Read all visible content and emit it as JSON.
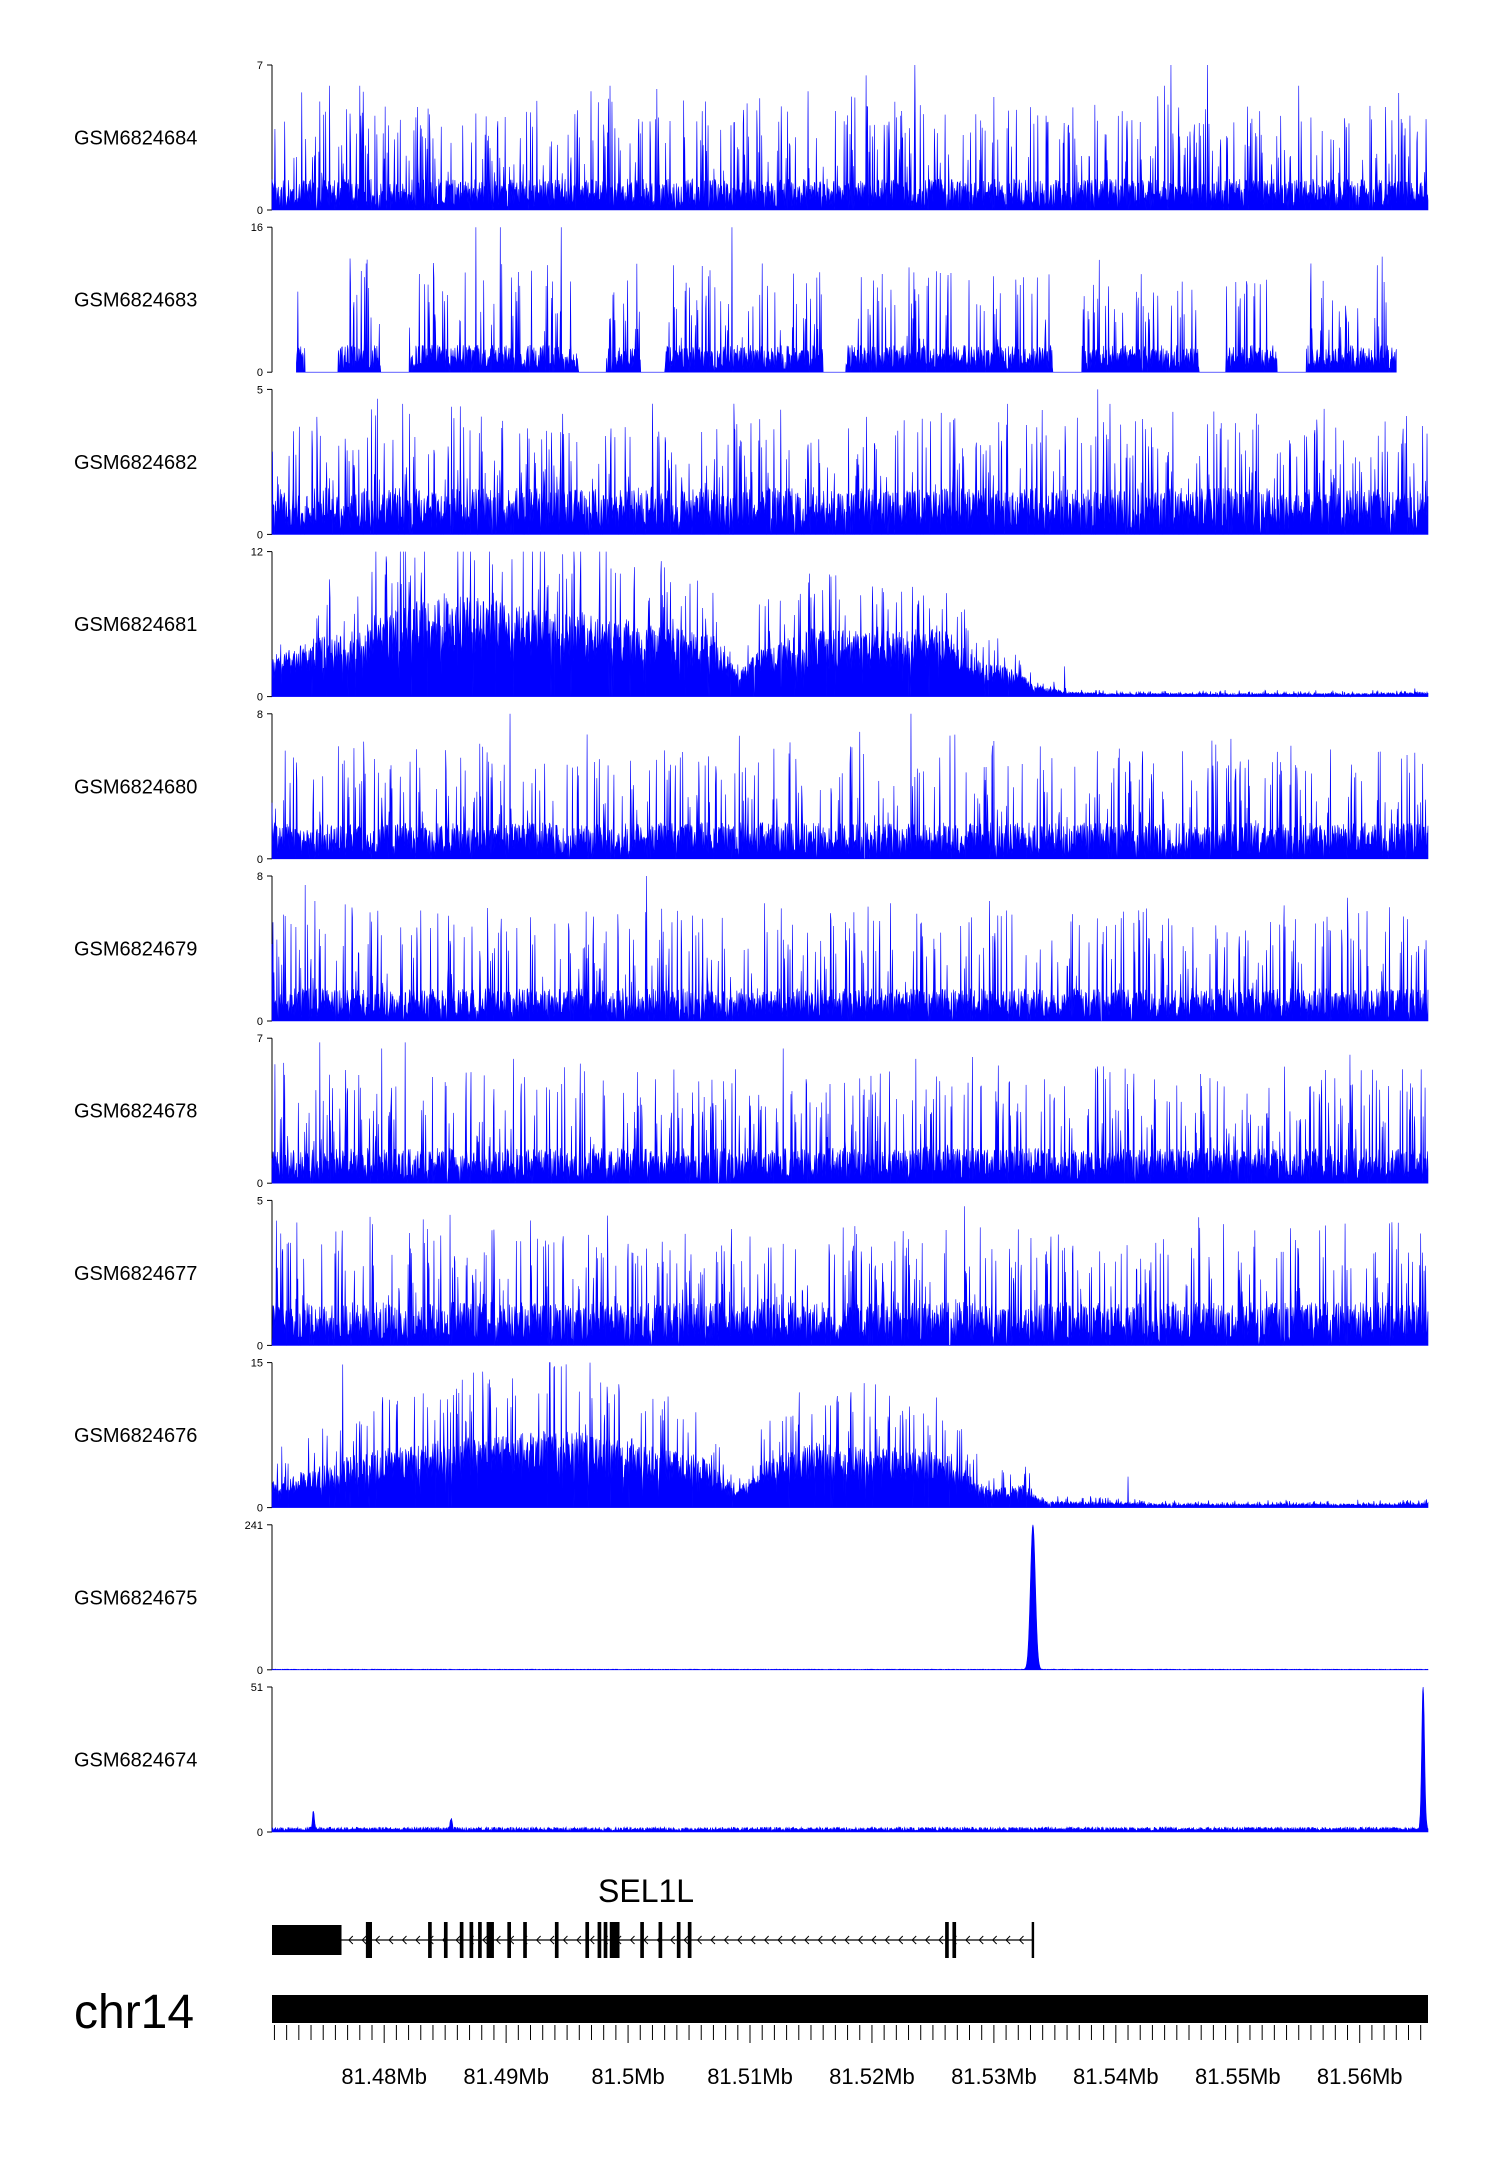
{
  "chart_data": {
    "type": "area",
    "chromosome": "chr14",
    "xlim": [
      81.4708,
      81.5656
    ],
    "x_ticks": [
      81.471,
      81.472,
      81.473,
      81.474,
      81.475,
      81.476,
      81.477,
      81.478,
      81.479,
      81.48,
      81.481,
      81.482,
      81.483,
      81.484,
      81.485,
      81.486,
      81.487,
      81.488,
      81.489,
      81.49,
      81.491,
      81.492,
      81.493,
      81.494,
      81.495,
      81.496,
      81.497,
      81.498,
      81.499,
      81.5,
      81.501,
      81.502,
      81.503,
      81.504,
      81.505,
      81.506,
      81.507,
      81.508,
      81.509,
      81.51,
      81.511,
      81.512,
      81.513,
      81.514,
      81.515,
      81.516,
      81.517,
      81.518,
      81.519,
      81.52,
      81.521,
      81.522,
      81.523,
      81.524,
      81.525,
      81.526,
      81.527,
      81.528,
      81.529,
      81.53,
      81.531,
      81.532,
      81.533,
      81.534,
      81.535,
      81.536,
      81.537,
      81.538,
      81.539,
      81.54,
      81.541,
      81.542,
      81.543,
      81.544,
      81.545,
      81.546,
      81.547,
      81.548,
      81.549,
      81.55,
      81.551,
      81.552,
      81.553,
      81.554,
      81.555,
      81.556,
      81.557,
      81.558,
      81.559,
      81.56,
      81.561,
      81.562,
      81.563,
      81.564,
      81.565
    ],
    "x_labels": [
      {
        "x": 81.48,
        "label": "81.48Mb"
      },
      {
        "x": 81.49,
        "label": "81.49Mb"
      },
      {
        "x": 81.5,
        "label": "81.5Mb"
      },
      {
        "x": 81.51,
        "label": "81.51Mb"
      },
      {
        "x": 81.52,
        "label": "81.52Mb"
      },
      {
        "x": 81.53,
        "label": "81.53Mb"
      },
      {
        "x": 81.54,
        "label": "81.54Mb"
      },
      {
        "x": 81.55,
        "label": "81.55Mb"
      },
      {
        "x": 81.56,
        "label": "81.56Mb"
      }
    ],
    "fill_color": "#0000ff",
    "tracks": [
      {
        "name": "GSM6824684",
        "ymax": 7,
        "ymin": 0,
        "coverage": [
          [
            81.4708,
            81.5656
          ]
        ],
        "base": 1.5,
        "spikes": [
          [
            81.4755,
            6.0
          ],
          [
            81.478,
            6.0
          ],
          [
            81.4985,
            6.0
          ],
          [
            81.5195,
            6.5
          ],
          [
            81.5235,
            7.0
          ],
          [
            81.544,
            6.0
          ],
          [
            81.5445,
            7.0
          ],
          [
            81.5475,
            7.0
          ],
          [
            81.555,
            6.0
          ]
        ]
      },
      {
        "name": "GSM6824683",
        "ymax": 16,
        "ymin": 0,
        "coverage": [
          [
            81.4728,
            81.563
          ]
        ],
        "base": 3,
        "spikes": [
          [
            81.4785,
            12.0
          ],
          [
            81.4875,
            16.0
          ],
          [
            81.4895,
            16.0
          ],
          [
            81.4945,
            16.0
          ],
          [
            81.5085,
            16.0
          ],
          [
            81.511,
            12.0
          ],
          [
            81.556,
            12.0
          ]
        ],
        "gaps": [
          [
            81.4735,
            81.4762
          ],
          [
            81.4797,
            81.482
          ],
          [
            81.496,
            81.4982
          ],
          [
            81.501,
            81.503
          ],
          [
            81.516,
            81.5178
          ],
          [
            81.5348,
            81.5372
          ],
          [
            81.5468,
            81.549
          ],
          [
            81.5532,
            81.5556
          ]
        ]
      },
      {
        "name": "GSM6824682",
        "ymax": 5,
        "ymin": 0,
        "coverage": [
          [
            81.4708,
            81.5656
          ]
        ],
        "base": 1.6,
        "spikes": [
          [
            81.4815,
            4.5
          ],
          [
            81.4855,
            4.4
          ],
          [
            81.5125,
            4.3
          ],
          [
            81.5385,
            5.0
          ],
          [
            81.5395,
            4.5
          ],
          [
            81.5475,
            3.8
          ],
          [
            81.5615,
            3.4
          ]
        ]
      },
      {
        "name": "GSM6824681",
        "ymax": 12,
        "ymin": 0,
        "coverage": [
          [
            81.4708,
            81.5656
          ]
        ],
        "profile": [
          [
            81.4708,
            2.5
          ],
          [
            81.474,
            3.6
          ],
          [
            81.478,
            4.2
          ],
          [
            81.4815,
            5.5
          ],
          [
            81.484,
            6.5
          ],
          [
            81.49,
            5.8
          ],
          [
            81.496,
            5.2
          ],
          [
            81.502,
            4.5
          ],
          [
            81.507,
            3.8
          ],
          [
            81.509,
            1.5
          ],
          [
            81.511,
            3.0
          ],
          [
            81.515,
            4.2
          ],
          [
            81.52,
            4.0
          ],
          [
            81.526,
            4.3
          ],
          [
            81.529,
            2.0
          ],
          [
            81.532,
            1.8
          ],
          [
            81.533,
            0.8
          ],
          [
            81.536,
            0.3
          ],
          [
            81.54,
            0.2
          ],
          [
            81.545,
            0.2
          ],
          [
            81.55,
            0.2
          ],
          [
            81.56,
            0.2
          ],
          [
            81.5656,
            0.3
          ]
        ],
        "spikes": [
          [
            81.4825,
            11.5
          ],
          [
            81.515,
            8.2
          ],
          [
            81.5165,
            7.8
          ],
          [
            81.522,
            7.8
          ],
          [
            81.5238,
            7.5
          ],
          [
            81.527,
            6.6
          ],
          [
            81.5358,
            2.5
          ]
        ]
      },
      {
        "name": "GSM6824680",
        "ymax": 8,
        "ymin": 0,
        "coverage": [
          [
            81.4708,
            81.5656
          ]
        ],
        "base": 2.0,
        "spikes": [
          [
            81.4903,
            8.0
          ],
          [
            81.519,
            7.0
          ],
          [
            81.5232,
            8.0
          ],
          [
            81.53,
            6.5
          ],
          [
            81.5338,
            6.2
          ]
        ]
      },
      {
        "name": "GSM6824679",
        "ymax": 8,
        "ymin": 0,
        "coverage": [
          [
            81.4708,
            81.5656
          ]
        ],
        "base": 1.8,
        "spikes": [
          [
            81.4735,
            7.5
          ],
          [
            81.5015,
            8.0
          ],
          [
            81.5112,
            6.5
          ],
          [
            81.5185,
            6.0
          ],
          [
            81.5215,
            6.5
          ],
          [
            81.559,
            6.8
          ]
        ]
      },
      {
        "name": "GSM6824678",
        "ymax": 7,
        "ymin": 0,
        "coverage": [
          [
            81.4708,
            81.5656
          ]
        ],
        "base": 1.7,
        "spikes": [
          [
            81.4747,
            6.8
          ],
          [
            81.4798,
            6.5
          ],
          [
            81.4817,
            6.8
          ],
          [
            81.4906,
            6.0
          ],
          [
            81.4948,
            5.6
          ],
          [
            81.5088,
            5.5
          ],
          [
            81.5127,
            6.5
          ],
          [
            81.5236,
            6.0
          ],
          [
            81.5592,
            6.2
          ],
          [
            81.5635,
            5.5
          ]
        ]
      },
      {
        "name": "GSM6824677",
        "ymax": 5,
        "ymin": 0,
        "coverage": [
          [
            81.4708,
            81.5656
          ]
        ],
        "base": 1.5,
        "spikes": [
          [
            81.4854,
            4.5
          ],
          [
            81.5276,
            4.8
          ],
          [
            81.532,
            4.0
          ],
          [
            81.5588,
            4.2
          ],
          [
            81.564,
            3.2
          ]
        ]
      },
      {
        "name": "GSM6824676",
        "ymax": 15,
        "ymin": 0,
        "coverage": [
          [
            81.4708,
            81.5656
          ]
        ],
        "profile": [
          [
            81.4708,
            2.0
          ],
          [
            81.474,
            3.0
          ],
          [
            81.478,
            4.2
          ],
          [
            81.483,
            5.0
          ],
          [
            81.488,
            5.5
          ],
          [
            81.495,
            6.0
          ],
          [
            81.5,
            5.2
          ],
          [
            81.506,
            4.0
          ],
          [
            81.509,
            1.5
          ],
          [
            81.511,
            3.5
          ],
          [
            81.515,
            5.0
          ],
          [
            81.52,
            4.8
          ],
          [
            81.526,
            4.5
          ],
          [
            81.5285,
            2.0
          ],
          [
            81.53,
            1.5
          ],
          [
            81.5328,
            1.8
          ],
          [
            81.534,
            0.5
          ],
          [
            81.54,
            0.4
          ],
          [
            81.544,
            0.3
          ],
          [
            81.55,
            0.3
          ],
          [
            81.56,
            0.3
          ],
          [
            81.5656,
            0.4
          ]
        ],
        "spikes": [
          [
            81.4766,
            14.8
          ],
          [
            81.496,
            12.0
          ],
          [
            81.503,
            11.0
          ],
          [
            81.5135,
            9.5
          ],
          [
            81.5225,
            10.0
          ],
          [
            81.526,
            8.0
          ],
          [
            81.5325,
            3.5
          ],
          [
            81.541,
            3.2
          ]
        ]
      },
      {
        "name": "GSM6824675",
        "ymax": 241,
        "ymin": 0,
        "coverage": [
          [
            81.4708,
            81.5656
          ]
        ],
        "base": 1.0,
        "peaks": [
          [
            81.5332,
            241,
            0.00045
          ]
        ]
      },
      {
        "name": "GSM6824674",
        "ymax": 51,
        "ymin": 0,
        "coverage": [
          [
            81.4708,
            81.5656
          ]
        ],
        "base": 1.5,
        "peaks": [
          [
            81.4742,
            6,
            0.0002
          ],
          [
            81.4855,
            3.5,
            0.0002
          ],
          [
            81.5652,
            51,
            0.00025
          ]
        ]
      }
    ],
    "gene": {
      "name": "SEL1L",
      "strand": "-",
      "start": 81.4708,
      "end": 81.5332,
      "exons": [
        [
          81.4708,
          81.4765
        ],
        [
          81.4785,
          81.479
        ],
        [
          81.4836,
          81.4839
        ],
        [
          81.4849,
          81.4852
        ],
        [
          81.4862,
          81.4865
        ],
        [
          81.487,
          81.4873
        ],
        [
          81.4877,
          81.488
        ],
        [
          81.4884,
          81.489
        ],
        [
          81.4901,
          81.4904
        ],
        [
          81.4914,
          81.4917
        ],
        [
          81.494,
          81.4943
        ],
        [
          81.4965,
          81.4968
        ],
        [
          81.4975,
          81.4978
        ],
        [
          81.498,
          81.4983
        ],
        [
          81.4985,
          81.4993
        ],
        [
          81.501,
          81.5013
        ],
        [
          81.5025,
          81.5028
        ],
        [
          81.504,
          81.5043
        ],
        [
          81.5049,
          81.5052
        ],
        [
          81.526,
          81.5263
        ],
        [
          81.5266,
          81.5269
        ],
        [
          81.5331,
          81.5333
        ]
      ]
    }
  }
}
